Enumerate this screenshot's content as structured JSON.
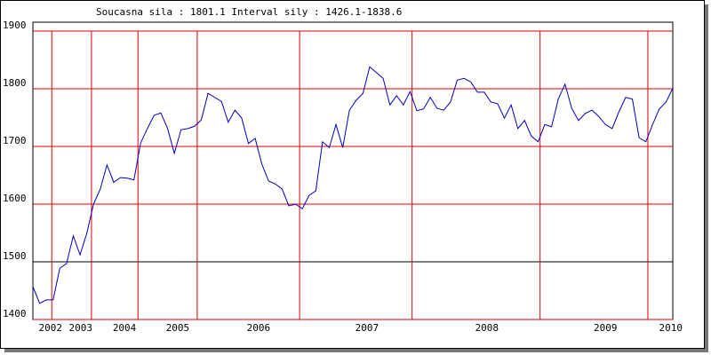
{
  "chart_data": {
    "type": "line",
    "title": "Soucasna sila : 1801.1  Interval sily : 1426.1-1838.6",
    "x": [
      0,
      1,
      2,
      3,
      4,
      5,
      6,
      7,
      8,
      9,
      10,
      11,
      12,
      13,
      14,
      15,
      16,
      17,
      18,
      19,
      20,
      21,
      22,
      23,
      24,
      25,
      26,
      27,
      28,
      29,
      30,
      31,
      32,
      33,
      34,
      35,
      36,
      37,
      38,
      39,
      40,
      41,
      42,
      43,
      44,
      45,
      46,
      47,
      48,
      49,
      50,
      51,
      52,
      53,
      54,
      55,
      56,
      57,
      58,
      59,
      60,
      61,
      62,
      63,
      64,
      65,
      66,
      67,
      68,
      69,
      70,
      71,
      72,
      73,
      74,
      75,
      76,
      77,
      78,
      79,
      80,
      81,
      82,
      83,
      84,
      85,
      86,
      87,
      88,
      89,
      90,
      91,
      92,
      93,
      94,
      95
    ],
    "series": [
      {
        "color": "#0000c0",
        "values": [
          1457,
          1428,
          1434,
          1434,
          1489,
          1497,
          1545,
          1512,
          1549,
          1600,
          1626,
          1668,
          1638,
          1646,
          1645,
          1642,
          1706,
          1731,
          1754,
          1758,
          1731,
          1688,
          1729,
          1731,
          1735,
          1746,
          1792,
          1785,
          1778,
          1742,
          1763,
          1749,
          1705,
          1714,
          1669,
          1640,
          1635,
          1626,
          1597,
          1600,
          1592,
          1615,
          1623,
          1708,
          1698,
          1738,
          1698,
          1763,
          1780,
          1792,
          1838,
          1828,
          1818,
          1772,
          1788,
          1772,
          1795,
          1762,
          1765,
          1785,
          1766,
          1763,
          1777,
          1815,
          1818,
          1812,
          1794,
          1794,
          1777,
          1774,
          1749,
          1772,
          1731,
          1745,
          1718,
          1708,
          1738,
          1734,
          1782,
          1808,
          1766,
          1745,
          1757,
          1763,
          1752,
          1738,
          1731,
          1760,
          1785,
          1782,
          1715,
          1708,
          1738,
          1765,
          1777,
          1801
        ]
      }
    ],
    "xlim": [
      0,
      95
    ],
    "xticks": [
      {
        "value": 2.6,
        "label": "2002"
      },
      {
        "value": 7.1,
        "label": "2003"
      },
      {
        "value": 13.6,
        "label": "2004"
      },
      {
        "value": 21.5,
        "label": "2005"
      },
      {
        "value": 33.5,
        "label": "2006"
      },
      {
        "value": 49.6,
        "label": "2007"
      },
      {
        "value": 67.4,
        "label": "2008"
      },
      {
        "value": 85,
        "label": "2009"
      },
      {
        "value": 94.7,
        "label": "2010"
      }
    ],
    "xgrid": [
      2.8,
      8.7,
      15.6,
      24.4,
      39.6,
      56.3,
      75.3,
      91.3
    ],
    "ylim": [
      1400,
      1900
    ],
    "yticks": [
      1400,
      1500,
      1600,
      1700,
      1800,
      1900
    ],
    "grid_color": "#e00000",
    "reference_line": 1500
  }
}
